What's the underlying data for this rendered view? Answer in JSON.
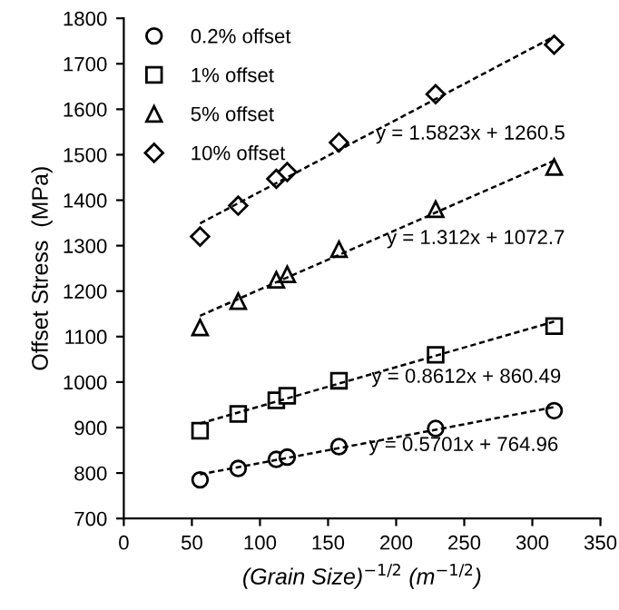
{
  "chart_data": {
    "type": "scatter",
    "xlabel": "(Grain Size)$^{−1/2}$ (m$^{−1/2}$)",
    "ylabel": "Offset Stress  (MPa)",
    "x": [
      56,
      84,
      112,
      120,
      158,
      229,
      316
    ],
    "series": [
      {
        "name": "0.2% offset",
        "color": "#000000",
        "marker": "circle",
        "values": [
          785,
          810,
          830,
          835,
          858,
          898,
          937
        ]
      },
      {
        "name": "1% offset",
        "color": "#000000",
        "marker": "square",
        "values": [
          893,
          930,
          960,
          970,
          1003,
          1060,
          1123
        ]
      },
      {
        "name": "5% offset",
        "color": "#000000",
        "marker": "triangle",
        "values": [
          1120,
          1178,
          1225,
          1237,
          1292,
          1380,
          1473
        ]
      },
      {
        "name": "10% offset",
        "color": "#000000",
        "marker": "diamond",
        "values": [
          1320,
          1388,
          1447,
          1462,
          1527,
          1633,
          1742
        ]
      },
      {
        "type": "line",
        "color": "#000000",
        "line_style": "dashed",
        "marker": "none",
        "x": [
          56,
          185,
          316
        ],
        "values": [
          797,
          870,
          945
        ]
      },
      {
        "type": "line",
        "color": "#000000",
        "line_style": "dashed",
        "marker": "none",
        "x": [
          56,
          185,
          316
        ],
        "values": [
          909,
          1020,
          1133
        ]
      },
      {
        "type": "line",
        "color": "#000000",
        "line_style": "dashed",
        "marker": "none",
        "x": [
          56,
          185,
          316
        ],
        "values": [
          1146,
          1315,
          1487
        ]
      },
      {
        "type": "line",
        "color": "#000000",
        "line_style": "dashed",
        "marker": "none",
        "x": [
          56,
          185,
          316
        ],
        "values": [
          1349,
          1553,
          1760
        ]
      }
    ],
    "annotations": [
      {
        "text": "y = 0.5701x + 764.96",
        "x": 180,
        "y": 860
      },
      {
        "text": "y = 0.8612x + 860.49",
        "x": 182,
        "y": 1010
      },
      {
        "text": "y = 1.312x + 1072.7",
        "x": 193,
        "y": 1315
      },
      {
        "text": "y = 1.5823x + 1260.5",
        "x": 185,
        "y": 1545
      }
    ],
    "xlim": [
      0,
      350
    ],
    "xticks": [
      0,
      50,
      100,
      150,
      200,
      250,
      300,
      350
    ],
    "ylim": [
      700,
      1800
    ],
    "yticks": [
      700,
      800,
      900,
      1000,
      1100,
      1200,
      1300,
      1400,
      1500,
      1600,
      1700,
      1800
    ],
    "grid": false,
    "legend": "top left"
  }
}
